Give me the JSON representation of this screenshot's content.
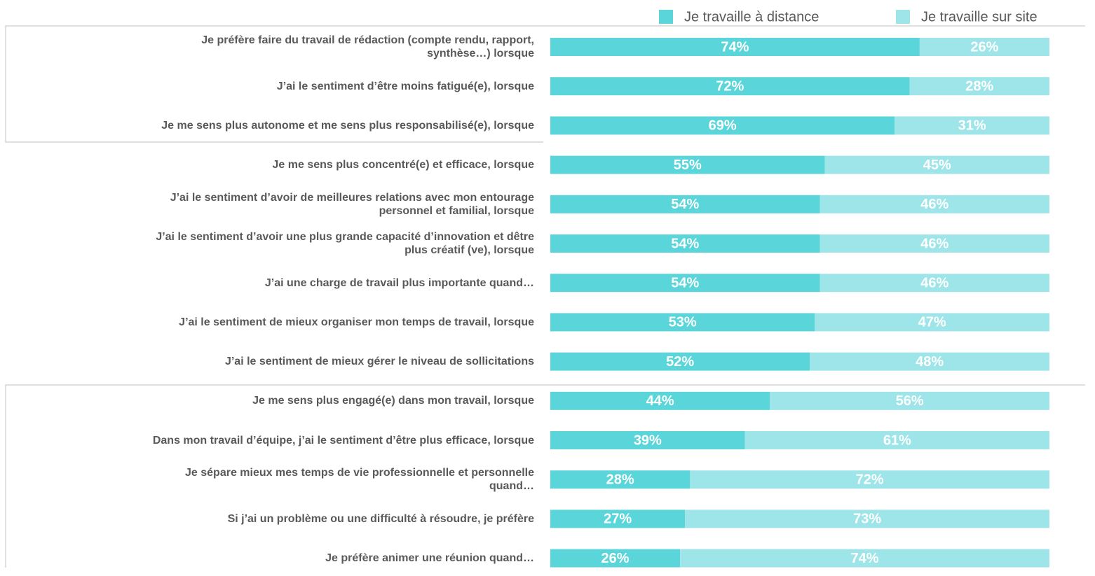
{
  "chart_data": {
    "type": "stacked-bar-horizontal",
    "categories": [
      "Je préfère faire du travail de rédaction (compte rendu, rapport,\nsynthèse…) lorsque",
      "J’ai le sentiment d’être moins fatigué(e), lorsque",
      "Je me sens plus autonome et me sens plus responsabilisé(e), lorsque",
      "Je me sens plus concentré(e) et efficace, lorsque",
      "J’ai le sentiment d’avoir de meilleures relations avec mon entourage\npersonnel et familial, lorsque",
      "J’ai le sentiment d’avoir une plus grande capacité d’innovation et dêtre\nplus créatif (ve), lorsque",
      "J’ai une charge de travail plus importante quand…",
      "J’ai le sentiment de mieux organiser mon temps de travail, lorsque",
      "J’ai le sentiment de mieux gérer le niveau de sollicitations",
      "Je me sens plus engagé(e) dans mon travail, lorsque",
      "Dans mon travail d’équipe, j’ai le sentiment d’être plus efficace, lorsque",
      "Je sépare mieux mes temps de vie professionnelle et personnelle\nquand…",
      "Si j’ai un problème ou une difficulté à résoudre, je préfère",
      "Je préfère animer une réunion quand…"
    ],
    "series": [
      {
        "name": "Je travaille à distance",
        "color": "#5ad5da",
        "values": [
          74,
          72,
          69,
          55,
          54,
          54,
          54,
          53,
          52,
          44,
          39,
          28,
          27,
          26
        ],
        "value_labels": [
          "74%",
          "72%",
          "69%",
          "55%",
          "54%",
          "54%",
          "54%",
          "53%",
          "52%",
          "44%",
          "39%",
          "28%",
          "27%",
          "26%"
        ]
      },
      {
        "name": "Je travaille sur site",
        "color": "#9de5e8",
        "values": [
          26,
          28,
          31,
          45,
          46,
          46,
          46,
          47,
          48,
          56,
          61,
          72,
          73,
          74
        ],
        "value_labels": [
          "26%",
          "28%",
          "31%",
          "45%",
          "46%",
          "46%",
          "46%",
          "47%",
          "48%",
          "56%",
          "61%",
          "72%",
          "73%",
          "74%"
        ]
      }
    ],
    "xlim": [
      0,
      100
    ],
    "legend": "top-right"
  }
}
